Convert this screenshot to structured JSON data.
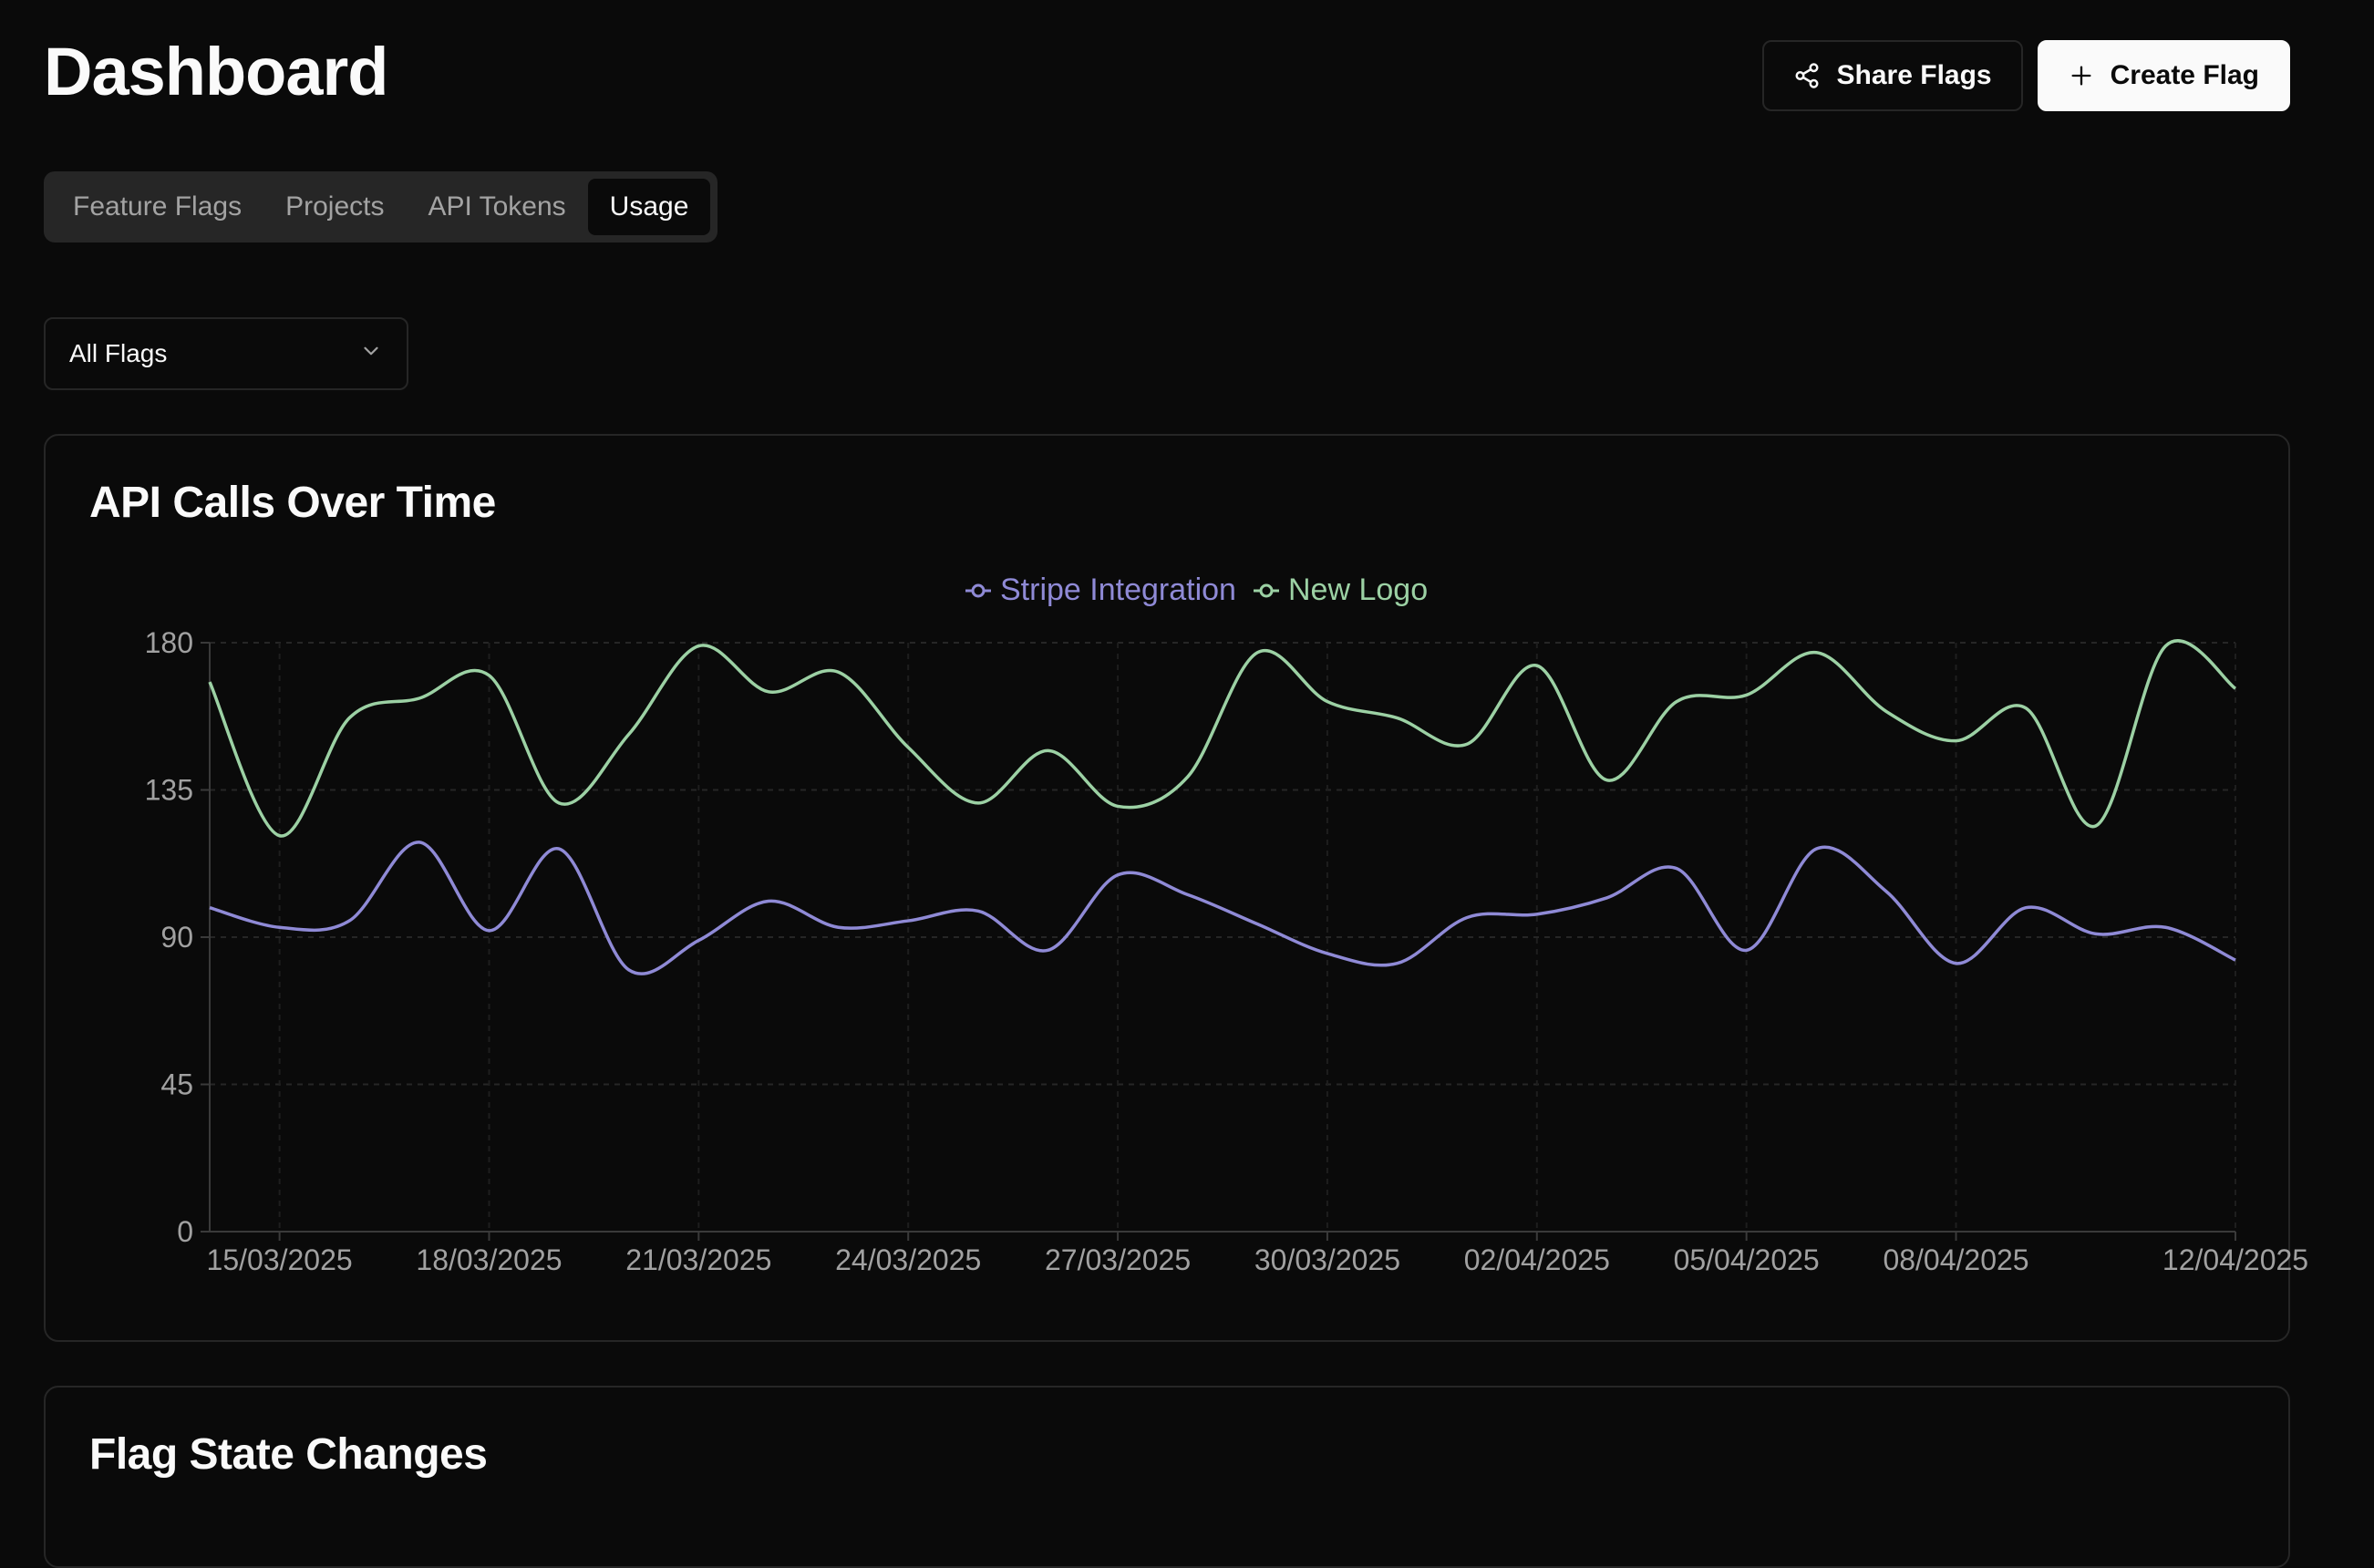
{
  "header": {
    "title": "Dashboard",
    "share_label": "Share Flags",
    "create_label": "Create Flag"
  },
  "tabs": [
    {
      "label": "Feature Flags",
      "active": false
    },
    {
      "label": "Projects",
      "active": false
    },
    {
      "label": "API Tokens",
      "active": false
    },
    {
      "label": "Usage",
      "active": true
    }
  ],
  "filter": {
    "selected": "All Flags"
  },
  "icons": {
    "share": "share-icon",
    "create": "plus-icon",
    "filter": "chevron-down-icon"
  },
  "colors": {
    "background": "#0a0a0a",
    "border": "#262626",
    "series_1": "#8f8ad6",
    "series_2": "#9cd1a4"
  },
  "cards": {
    "api_calls_title": "API Calls Over Time",
    "flag_changes_title": "Flag State Changes"
  },
  "chart_data": {
    "type": "line",
    "title": "API Calls Over Time",
    "xlabel": "",
    "ylabel": "",
    "ylim": [
      0,
      180
    ],
    "yticks": [
      0,
      45,
      90,
      135,
      180
    ],
    "x": [
      "14/03/2025",
      "15/03/2025",
      "16/03/2025",
      "17/03/2025",
      "18/03/2025",
      "19/03/2025",
      "20/03/2025",
      "21/03/2025",
      "22/03/2025",
      "23/03/2025",
      "24/03/2025",
      "25/03/2025",
      "26/03/2025",
      "27/03/2025",
      "28/03/2025",
      "29/03/2025",
      "30/03/2025",
      "31/03/2025",
      "01/04/2025",
      "02/04/2025",
      "03/04/2025",
      "04/04/2025",
      "05/04/2025",
      "06/04/2025",
      "07/04/2025",
      "08/04/2025",
      "09/04/2025",
      "10/04/2025",
      "11/04/2025",
      "12/04/2025"
    ],
    "xtick_labels": [
      "15/03/2025",
      "18/03/2025",
      "21/03/2025",
      "24/03/2025",
      "27/03/2025",
      "30/03/2025",
      "02/04/2025",
      "05/04/2025",
      "08/04/2025",
      "12/04/2025"
    ],
    "grid": true,
    "legend_position": "top-center",
    "series": [
      {
        "name": "Stripe Integration",
        "color": "#8f8ad6",
        "values": [
          99,
          93,
          95,
          119,
          92,
          117,
          80,
          89,
          101,
          93,
          95,
          98,
          86,
          109,
          103,
          94,
          85,
          82,
          96,
          97,
          102,
          111,
          86,
          117,
          104,
          82,
          99,
          91,
          93,
          83
        ]
      },
      {
        "name": "New Logo",
        "color": "#9cd1a4",
        "values": [
          168,
          121,
          157,
          163,
          170,
          131,
          152,
          179,
          165,
          171,
          148,
          131,
          147,
          130,
          139,
          177,
          162,
          157,
          149,
          173,
          138,
          162,
          164,
          177,
          159,
          150,
          160,
          124,
          179,
          166
        ]
      }
    ]
  }
}
